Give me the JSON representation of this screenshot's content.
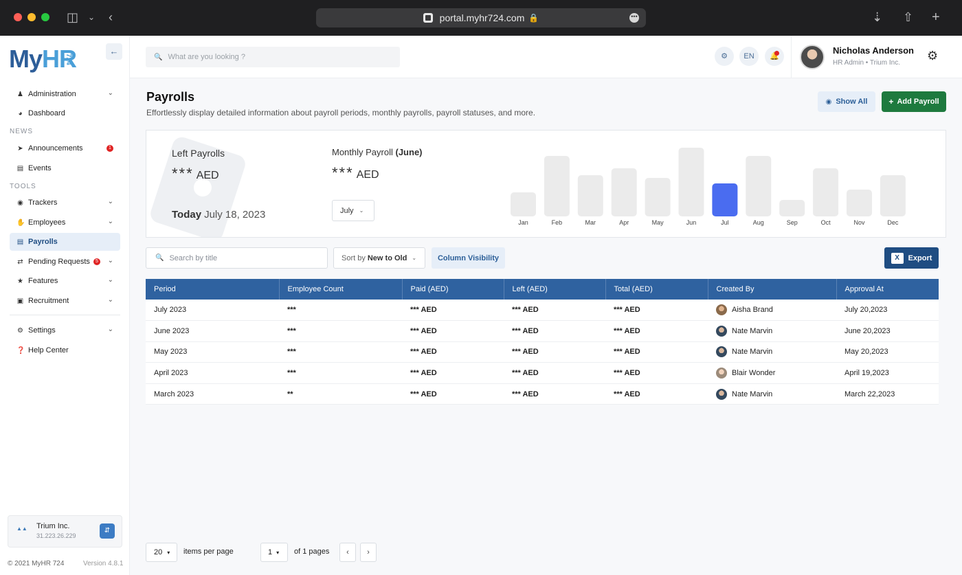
{
  "browser": {
    "url": "portal.myhr724.com"
  },
  "sidebar": {
    "logo": {
      "my": "My",
      "hr": "HR",
      "num": "724"
    },
    "sections": {
      "news": "NEWS",
      "tools": "TOOLS"
    },
    "items": {
      "administration": "Administration",
      "dashboard": "Dashboard",
      "announcements": "Announcements",
      "announcements_badge": "1",
      "events": "Events",
      "trackers": "Trackers",
      "employees": "Employees",
      "payrolls": "Payrolls",
      "pending_requests": "Pending Requests",
      "pending_badge": "5",
      "features": "Features",
      "recruitment": "Recruitment",
      "settings": "Settings",
      "help_center": "Help Center"
    },
    "company": {
      "name": "Trium Inc.",
      "ip": "31.223.26.229"
    },
    "footer": {
      "copyright": "© 2021 MyHR 724",
      "version": "Version 4.8.1"
    }
  },
  "topbar": {
    "search_placeholder": "What are you looking ?",
    "lang": "EN",
    "user": {
      "name": "Nicholas Anderson",
      "role": "HR Admin • Trium Inc."
    }
  },
  "page": {
    "title": "Payrolls",
    "subtitle": "Effortlessly display detailed information about payroll periods, monthly payrolls, payroll statuses, and more.",
    "show_all": "Show All",
    "add_payroll": "Add Payroll"
  },
  "stats": {
    "left_payrolls_label": "Left Payrolls",
    "left_payrolls_value": "***",
    "currency": "AED",
    "today_label": "Today",
    "today_date": "July 18, 2023",
    "monthly_label": "Monthly Payroll",
    "monthly_period": "(June)",
    "monthly_value": "***",
    "month_select": "July"
  },
  "chart_data": {
    "type": "bar",
    "categories": [
      "Jan",
      "Feb",
      "Mar",
      "Apr",
      "May",
      "Jun",
      "Jul",
      "Aug",
      "Sep",
      "Oct",
      "Nov",
      "Dec"
    ],
    "values": [
      35,
      88,
      60,
      70,
      56,
      100,
      48,
      88,
      24,
      70,
      39,
      60
    ],
    "highlight": "Jul",
    "colors": {
      "bar": "#ebebeb",
      "highlight": "#4a6cf0"
    },
    "title": "",
    "xlabel": "",
    "ylabel": ""
  },
  "toolbar": {
    "search_placeholder": "Search by title",
    "sort_prefix": "Sort by",
    "sort_value": "New to Old",
    "column_visibility": "Column Visibility",
    "export": "Export"
  },
  "table": {
    "headers": [
      "Period",
      "Employee Count",
      "Paid (AED)",
      "Left (AED)",
      "Total (AED)",
      "Created By",
      "Approval At"
    ],
    "rows": [
      [
        "July 2023",
        "***",
        "*** AED",
        "*** AED",
        "*** AED",
        "Aisha Brand",
        "July 20,2023"
      ],
      [
        "June 2023",
        "***",
        "*** AED",
        "*** AED",
        "*** AED",
        "Nate Marvin",
        "June 20,2023"
      ],
      [
        "May 2023",
        "***",
        "*** AED",
        "*** AED",
        "*** AED",
        "Nate Marvin",
        "May 20,2023"
      ],
      [
        "April 2023",
        "***",
        "*** AED",
        "*** AED",
        "*** AED",
        "Blair Wonder",
        "April 19,2023"
      ],
      [
        "March 2023",
        "**",
        "*** AED",
        "*** AED",
        "*** AED",
        "Nate Marvin",
        "March 22,2023"
      ]
    ]
  },
  "pagination": {
    "per_page": "20",
    "per_page_label": "items per page",
    "page": "1",
    "page_label": "of 1 pages"
  }
}
